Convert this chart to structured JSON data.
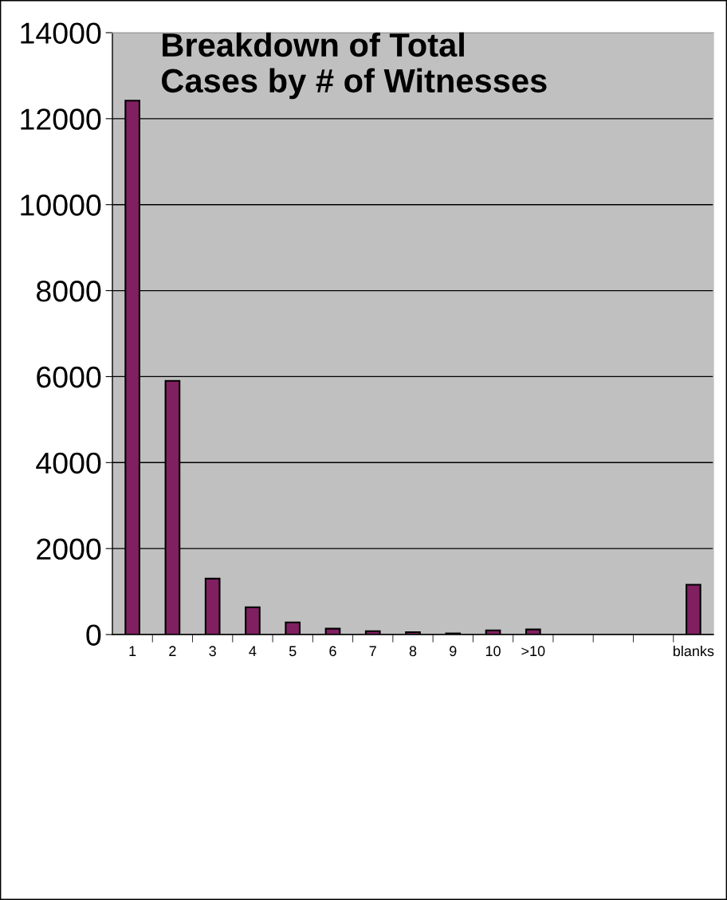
{
  "chart_data": {
    "type": "bar",
    "title": "Breakdown of Total\nCases by # of Witnesses",
    "categories": [
      "1",
      "2",
      "3",
      "4",
      "5",
      "6",
      "7",
      "8",
      "9",
      "10",
      ">10",
      null,
      null,
      null,
      "blanks"
    ],
    "values": [
      12420,
      5900,
      1300,
      634,
      284,
      137,
      78,
      57,
      26,
      98,
      118,
      null,
      null,
      null,
      1160
    ],
    "color": "#802060",
    "ylim": [
      0,
      14000
    ],
    "yticks": [
      0,
      2000,
      4000,
      6000,
      8000,
      10000,
      12000,
      14000
    ],
    "grid": "y",
    "legend": false
  }
}
